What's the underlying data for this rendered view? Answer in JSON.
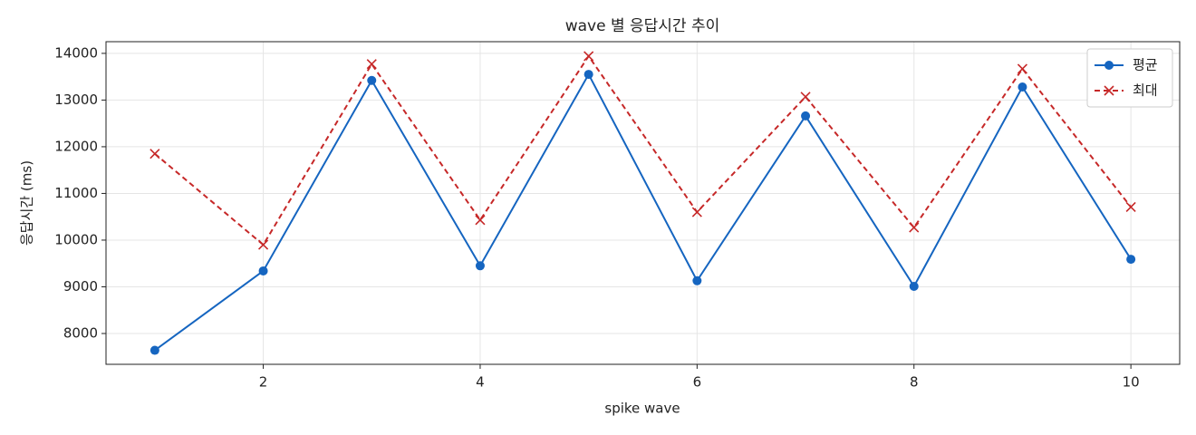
{
  "chart_data": {
    "type": "line",
    "title": "wave 별 응답시간 추이",
    "x_label": "spike wave",
    "y_label": "응답시간 (ms)",
    "x": [
      1,
      2,
      3,
      4,
      5,
      6,
      7,
      8,
      9,
      10
    ],
    "series": [
      {
        "name": "평균",
        "color": "#1565c0",
        "style": "solid",
        "marker": "circle",
        "values": [
          7640,
          9340,
          13420,
          9450,
          13550,
          9130,
          12660,
          9010,
          13280,
          9590
        ]
      },
      {
        "name": "최대",
        "color": "#c62828",
        "style": "dashed",
        "marker": "x",
        "values": [
          11850,
          9900,
          13770,
          10430,
          13940,
          10600,
          13070,
          10270,
          13670,
          10710
        ]
      }
    ],
    "xlim": [
      0.55,
      10.45
    ],
    "xticks": [
      2,
      4,
      6,
      8,
      10
    ],
    "ylim": [
      7340,
      14250
    ],
    "yticks": [
      8000,
      9000,
      10000,
      11000,
      12000,
      13000,
      14000
    ],
    "grid": true,
    "legend": "upper right"
  }
}
